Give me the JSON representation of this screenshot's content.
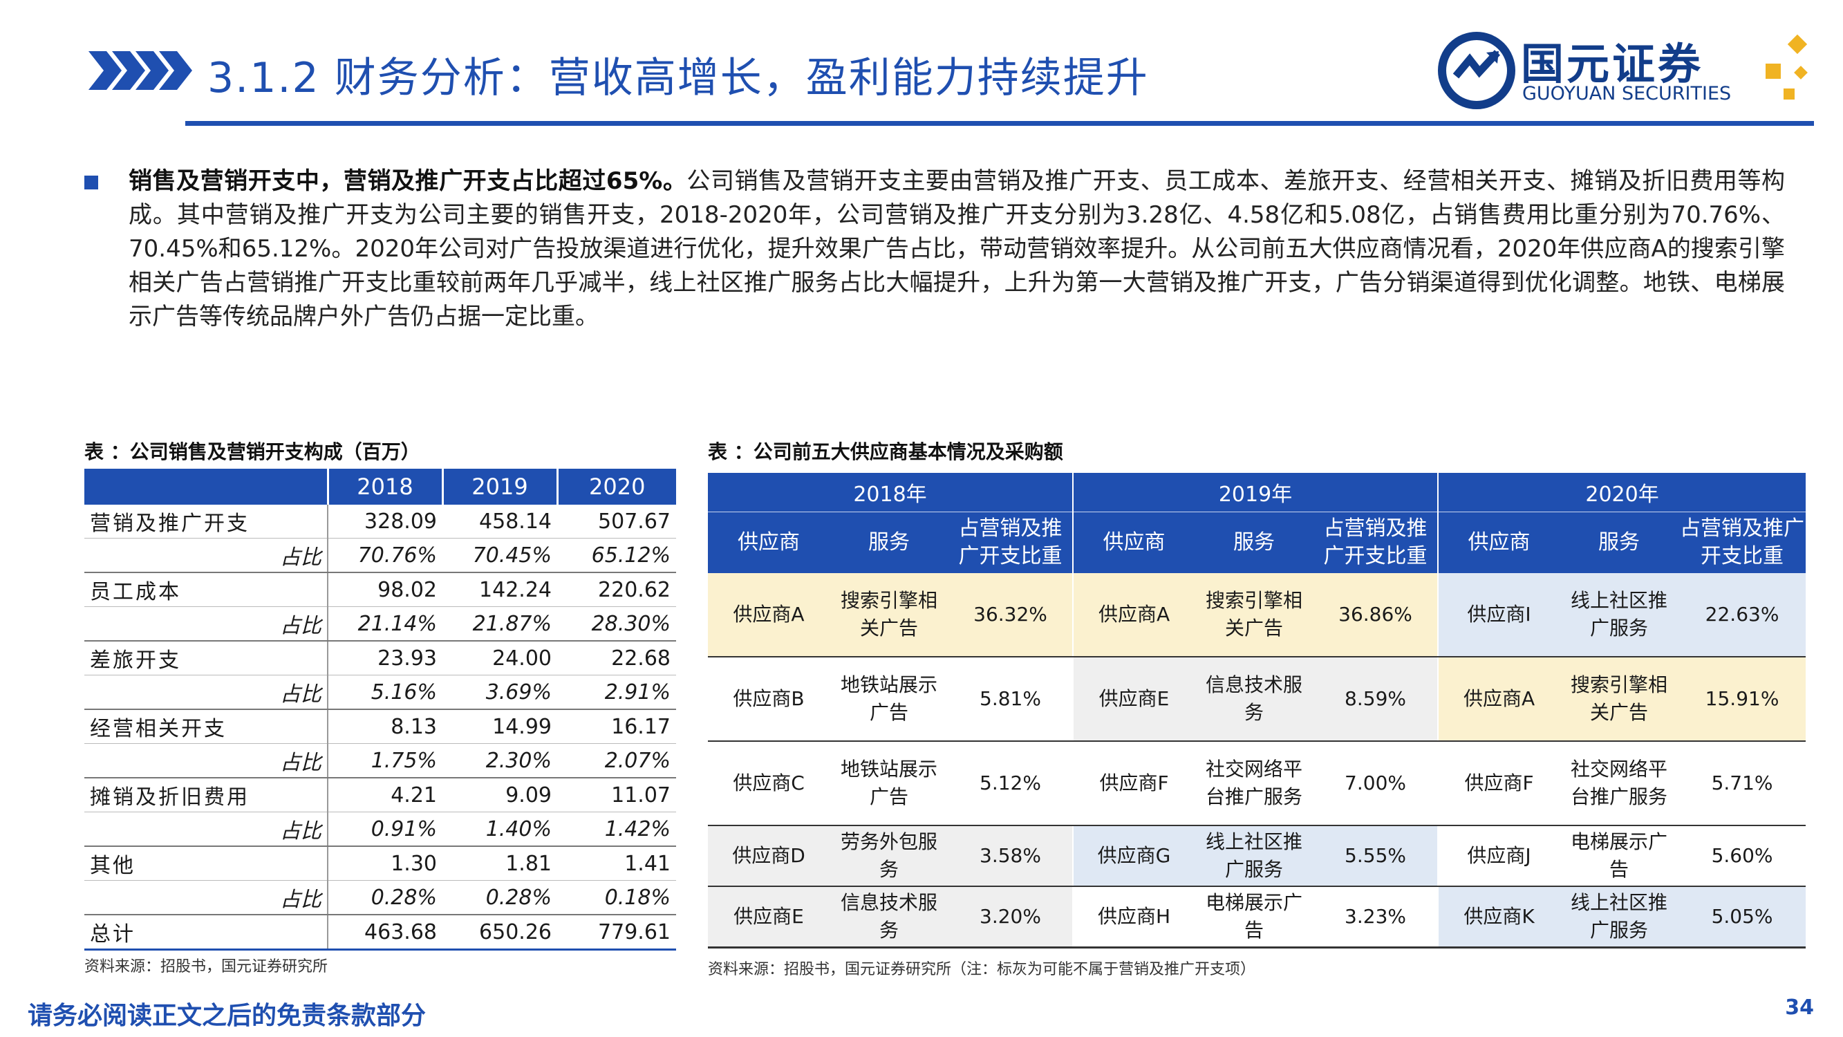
{
  "header": {
    "title": "3.1.2 财务分析：营收高增长，盈利能力持续提升",
    "logo_cn": "国元证券",
    "logo_en": "GUOYUAN SECURITIES"
  },
  "bullet": {
    "lead": "销售及营销开支中，营销及推广开支占比超过65%。",
    "body": "公司销售及营销开支主要由营销及推广开支、员工成本、差旅开支、经营相关开支、摊销及折旧费用等构成。其中营销及推广开支为公司主要的销售开支，2018-2020年，公司营销及推广开支分别为3.28亿、4.58亿和5.08亿，占销售费用比重分别为70.76%、70.45%和65.12%。2020年公司对广告投放渠道进行优化，提升效果广告占比，带动营销效率提升。从公司前五大供应商情况看，2020年供应商A的搜索引擎相关广告占营销推广开支比重较前两年几乎减半，线上社区推广服务占比大幅提升，上升为第一大营销及推广开支，广告分销渠道得到优化调整。地铁、电梯展示广告等传统品牌户外广告仍占据一定比重。"
  },
  "left_table": {
    "caption": "表 ：公司销售及营销开支构成（百万）",
    "headers": [
      "",
      "2018",
      "2019",
      "2020"
    ],
    "rows": [
      {
        "label": "营销及推广开支",
        "values": [
          "328.09",
          "458.14",
          "507.67"
        ],
        "ratio_label": "占比",
        "ratios": [
          "70.76%",
          "70.45%",
          "65.12%"
        ]
      },
      {
        "label": "员工成本",
        "values": [
          "98.02",
          "142.24",
          "220.62"
        ],
        "ratio_label": "占比",
        "ratios": [
          "21.14%",
          "21.87%",
          "28.30%"
        ]
      },
      {
        "label": "差旅开支",
        "values": [
          "23.93",
          "24.00",
          "22.68"
        ],
        "ratio_label": "占比",
        "ratios": [
          "5.16%",
          "3.69%",
          "2.91%"
        ]
      },
      {
        "label": "经营相关开支",
        "values": [
          "8.13",
          "14.99",
          "16.17"
        ],
        "ratio_label": "占比",
        "ratios": [
          "1.75%",
          "2.30%",
          "2.07%"
        ]
      },
      {
        "label": "摊销及折旧费用",
        "values": [
          "4.21",
          "9.09",
          "11.07"
        ],
        "ratio_label": "占比",
        "ratios": [
          "0.91%",
          "1.40%",
          "1.42%"
        ]
      },
      {
        "label": "其他",
        "values": [
          "1.30",
          "1.81",
          "1.41"
        ],
        "ratio_label": "占比",
        "ratios": [
          "0.28%",
          "0.28%",
          "0.18%"
        ]
      }
    ],
    "total": {
      "label": "总计",
      "values": [
        "463.68",
        "650.26",
        "779.61"
      ]
    },
    "source": "资料来源：招股书，国元证券研究所"
  },
  "right_table": {
    "caption": "表 ：公司前五大供应商基本情况及采购额",
    "years": [
      "2018年",
      "2019年",
      "2020年"
    ],
    "col_headers": [
      "供应商",
      "服务",
      "占营销及推广开支比重"
    ],
    "rows": [
      {
        "y2018": {
          "sup": "供应商A",
          "svc": "搜索引擎相关广告",
          "pct": "36.32%"
        },
        "y2019": {
          "sup": "供应商A",
          "svc": "搜索引擎相关广告",
          "pct": "36.86%"
        },
        "y2020": {
          "sup": "供应商I",
          "svc": "线上社区推广服务",
          "pct": "22.63%"
        }
      },
      {
        "y2018": {
          "sup": "供应商B",
          "svc": "地铁站展示广告",
          "pct": "5.81%"
        },
        "y2019": {
          "sup": "供应商E",
          "svc": "信息技术服务",
          "pct": "8.59%"
        },
        "y2020": {
          "sup": "供应商A",
          "svc": "搜索引擎相关广告",
          "pct": "15.91%"
        }
      },
      {
        "y2018": {
          "sup": "供应商C",
          "svc": "地铁站展示广告",
          "pct": "5.12%"
        },
        "y2019": {
          "sup": "供应商F",
          "svc": "社交网络平台推广服务",
          "pct": "7.00%"
        },
        "y2020": {
          "sup": "供应商F",
          "svc": "社交网络平台推广服务",
          "pct": "5.71%"
        }
      },
      {
        "y2018": {
          "sup": "供应商D",
          "svc": "劳务外包服务",
          "pct": "3.58%"
        },
        "y2019": {
          "sup": "供应商G",
          "svc": "线上社区推广服务",
          "pct": "5.55%"
        },
        "y2020": {
          "sup": "供应商J",
          "svc": "电梯展示广告",
          "pct": "5.60%"
        }
      },
      {
        "y2018": {
          "sup": "供应商E",
          "svc": "信息技术服务",
          "pct": "3.20%"
        },
        "y2019": {
          "sup": "供应商H",
          "svc": "电梯展示广告",
          "pct": "3.23%"
        },
        "y2020": {
          "sup": "供应商K",
          "svc": "线上社区推广服务",
          "pct": "5.05%"
        }
      }
    ],
    "source": "资料来源：招股书，国元证券研究所（注：标灰为可能不属于营销及推广开支项）"
  },
  "footer": {
    "disclaimer": "请务必阅读正文之后的免责条款部分",
    "page": "34"
  },
  "colors": {
    "brand_blue": "#1f4fb0",
    "highlight_yellow": "#fbf1cf",
    "highlight_gray": "#efefef",
    "highlight_blue": "#dfe8f4",
    "logo_gold": "#f0b323"
  }
}
